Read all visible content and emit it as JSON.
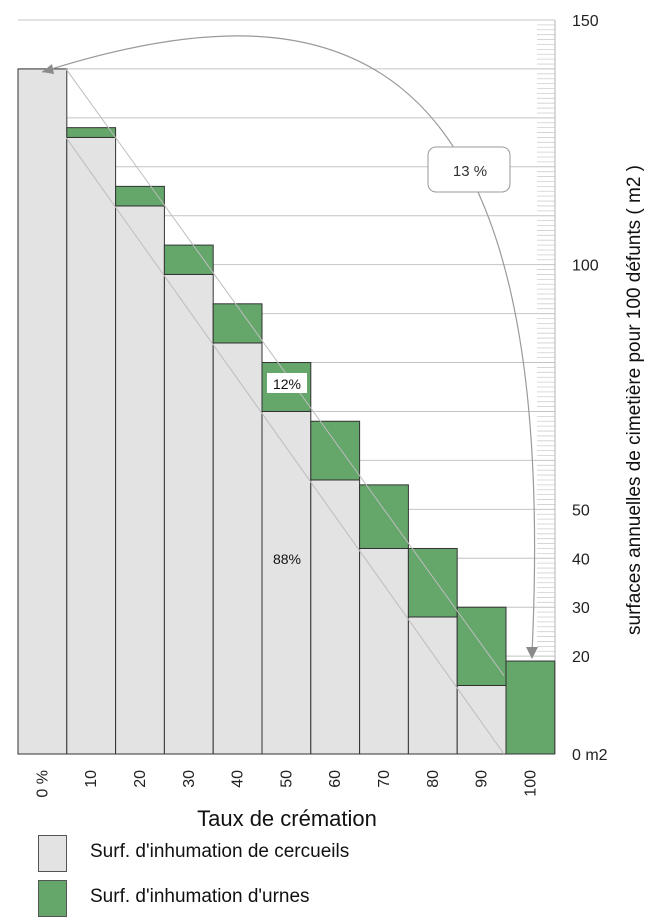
{
  "chart_data": {
    "type": "bar",
    "title": "",
    "xlabel": "Taux de crémation",
    "ylabel": "surfaces annuelles de cimetière pour 100 défunts ( m2 )",
    "categories": [
      "0 %",
      "10",
      "20",
      "30",
      "40",
      "50",
      "60",
      "70",
      "80",
      "90",
      "100"
    ],
    "series": [
      {
        "name": "Surf.  d'inhumation de cercueils",
        "color": "#e3e3e3",
        "values": [
          140,
          126,
          112,
          98,
          84,
          70,
          56,
          42,
          28,
          14,
          0
        ]
      },
      {
        "name": "Surf.  d'inhumation d'urnes",
        "color": "#65a66b",
        "values": [
          0,
          2,
          4,
          6,
          8,
          10,
          12,
          13,
          14,
          16,
          19
        ]
      }
    ],
    "ylim": [
      0,
      150
    ],
    "yticks": [
      {
        "value": 150,
        "label": "150"
      },
      {
        "value": 100,
        "label": "100"
      },
      {
        "value": 50,
        "label": "50"
      },
      {
        "value": 40,
        "label": "40"
      },
      {
        "value": 30,
        "label": "30"
      },
      {
        "value": 20,
        "label": "20"
      },
      {
        "value": 0,
        "label": "0 m2"
      }
    ],
    "gridlines": [
      150,
      140,
      130,
      120,
      110,
      100,
      90,
      80,
      70,
      60,
      50,
      40,
      30,
      20
    ],
    "annotations": {
      "arrow_label": "13 %",
      "urn_share_label": "12%",
      "coffin_share_label": "88%"
    }
  },
  "legend": {
    "coffin_label": "Surf.  d'inhumation de cercueils",
    "urn_label": "Surf.  d'inhumation d'urnes"
  },
  "colors": {
    "coffin": "#e3e3e3",
    "urn": "#65a66b",
    "grid": "#c4c4c4",
    "outline": "#333333"
  }
}
